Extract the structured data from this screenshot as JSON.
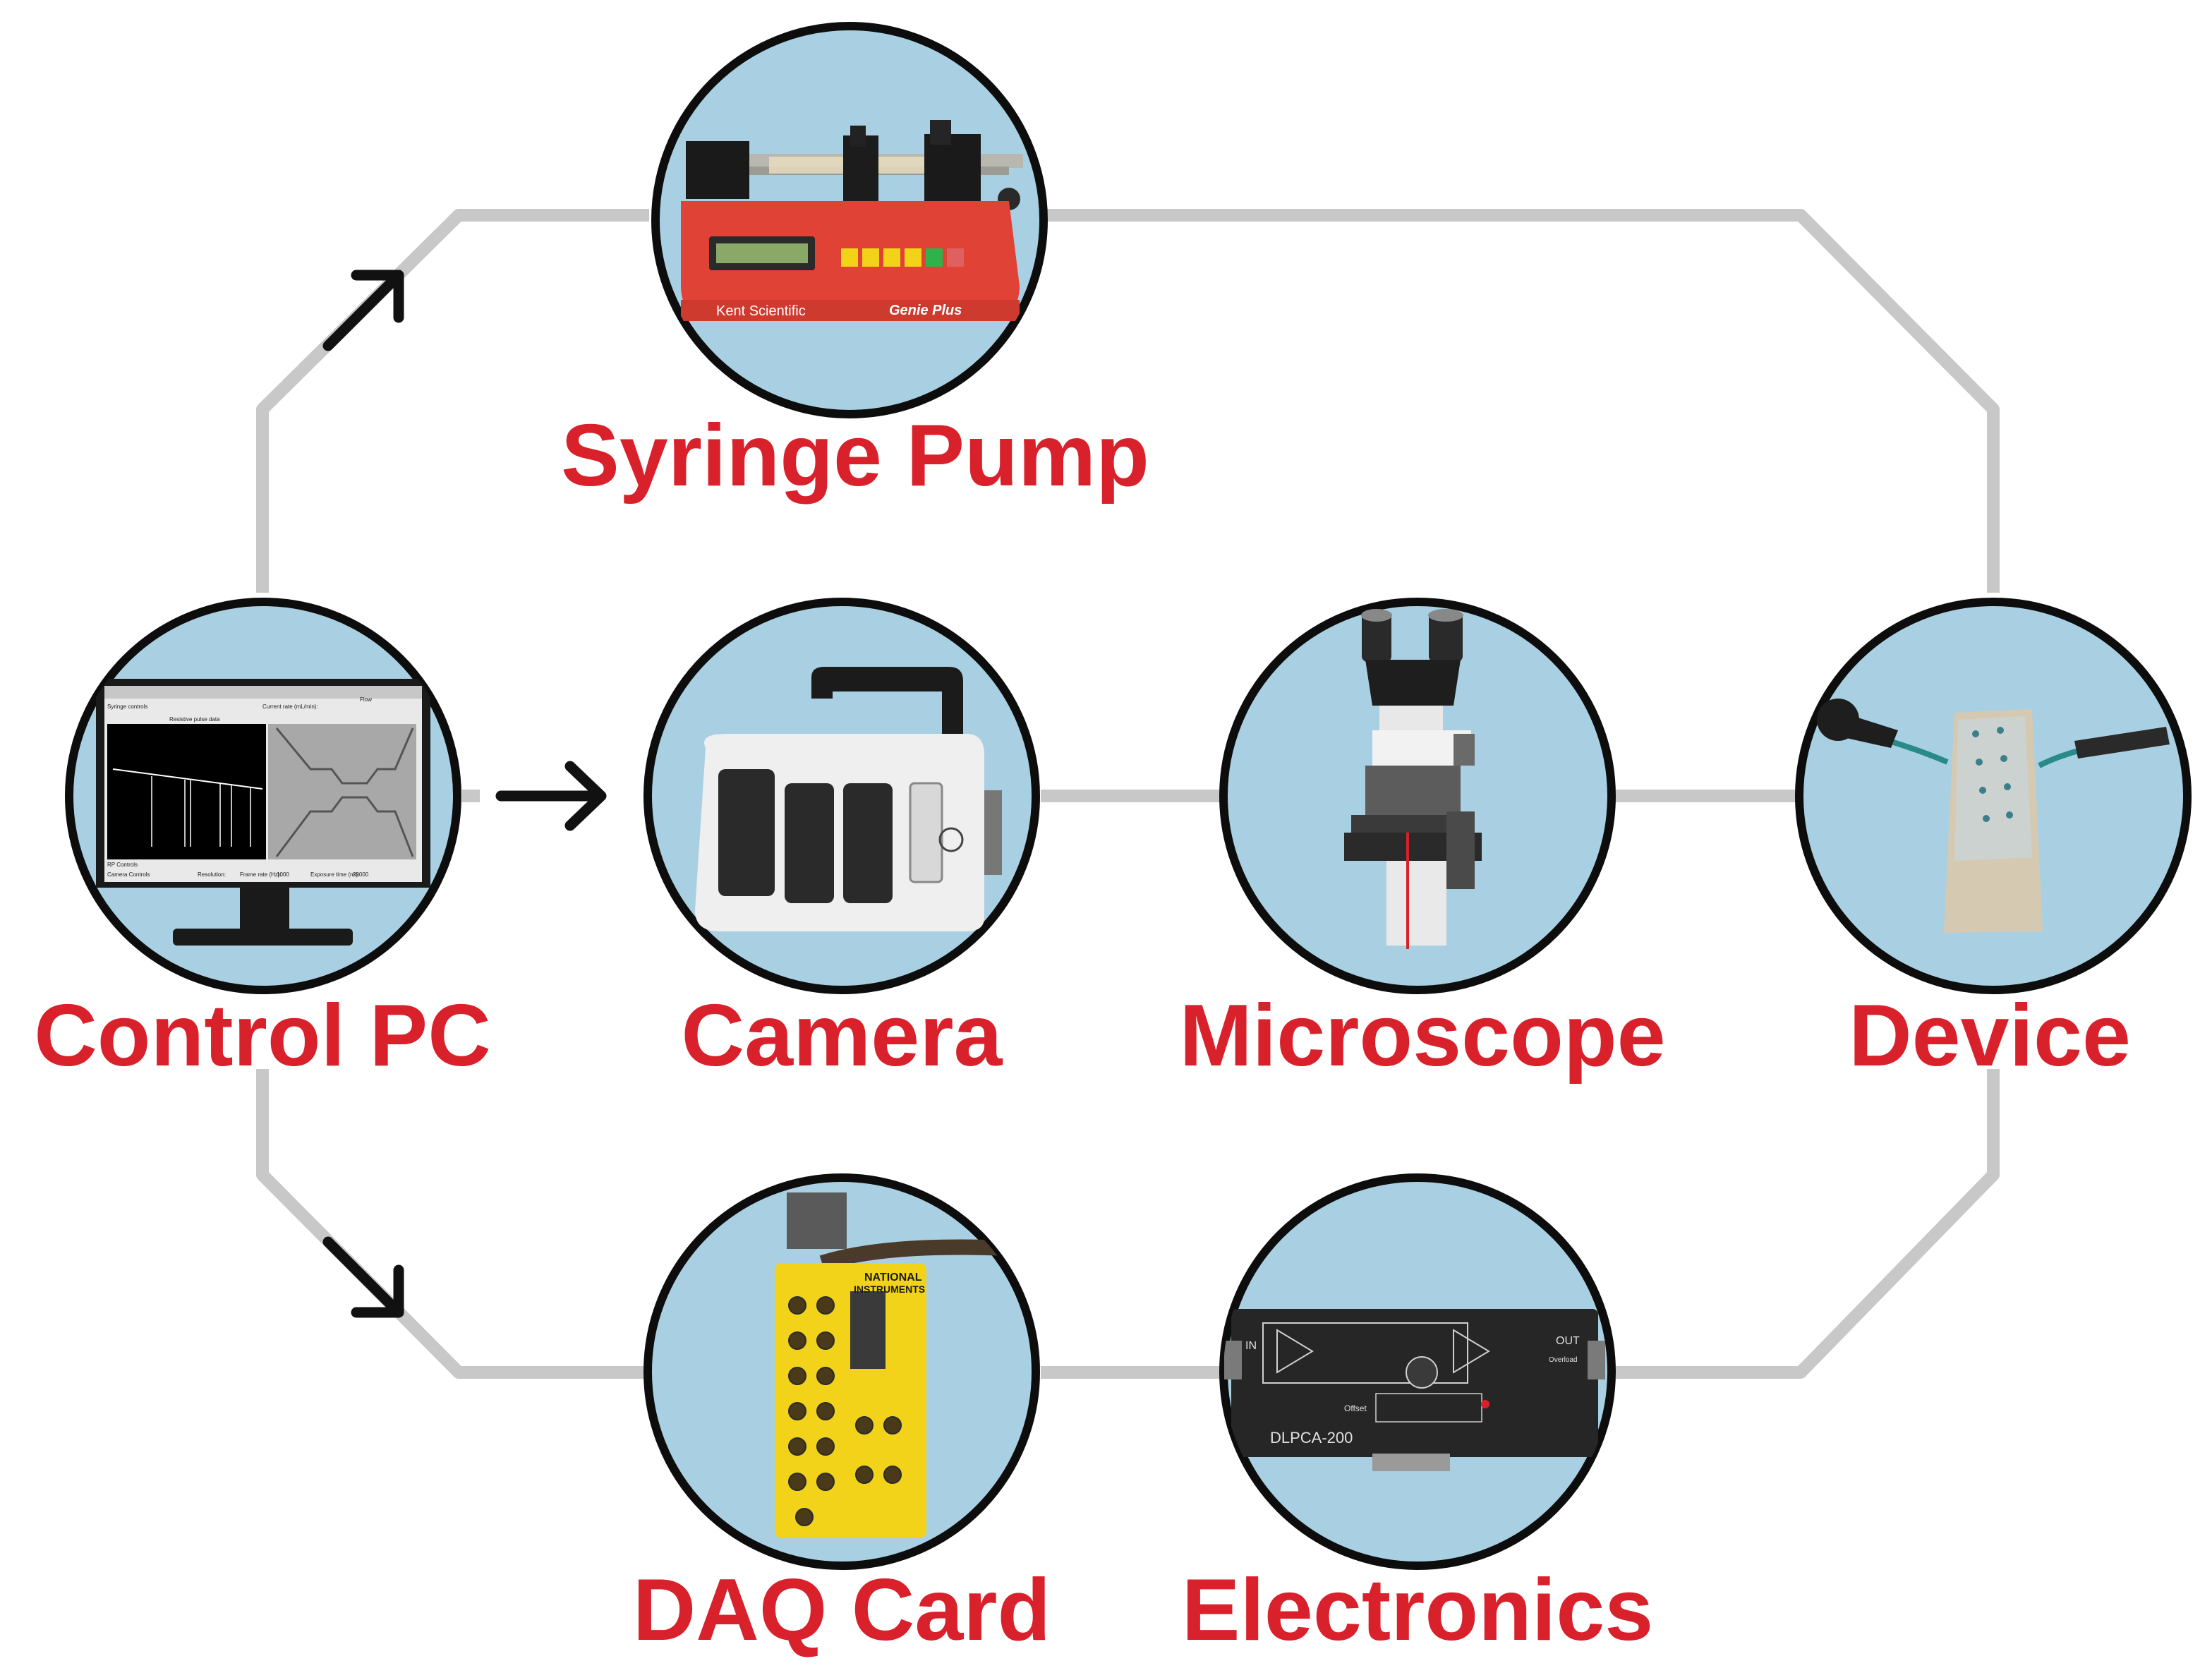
{
  "colors": {
    "label": "#d9212c",
    "circle_fill": "#a9d0e2",
    "circle_stroke": "#0d0d0d",
    "connector": "#c8c8c8",
    "arrow": "#111111"
  },
  "nodes": {
    "syringe_pump": {
      "label": "Syringe Pump",
      "icon": "syringe-pump-icon",
      "brand": "Kent Scientific",
      "model": "Genie Plus"
    },
    "control_pc": {
      "label": "Control PC",
      "icon": "monitor-icon"
    },
    "camera": {
      "label": "Camera",
      "icon": "camera-icon"
    },
    "microscope": {
      "label": "Microscope",
      "icon": "microscope-icon"
    },
    "device": {
      "label": "Device",
      "icon": "microfluidic-device-icon"
    },
    "daq_card": {
      "label": "DAQ Card",
      "icon": "daq-card-icon",
      "brand_line1": "NATIONAL",
      "brand_line2": "INSTRUMENTS"
    },
    "electronics": {
      "label": "Electronics",
      "icon": "amplifier-icon",
      "model": "DLPCA-200",
      "in_label": "IN",
      "out_label": "OUT",
      "overload_label": "Overload",
      "offset_label": "Offset"
    }
  },
  "screen": {
    "syringe_controls": "Syringe controls",
    "current_rate": "Current rate (mL/min):",
    "flow_label": "Flow",
    "plot_title": "Resistive pulse data",
    "rp_controls": "RP Controls",
    "camera_controls": "Camera Controls",
    "resolution": "Resolution:",
    "frame_rate": "Frame rate (Hz):",
    "frame_rate_value": "1000",
    "exposure": "Exposure time (ns):",
    "exposure_value": "20000"
  }
}
